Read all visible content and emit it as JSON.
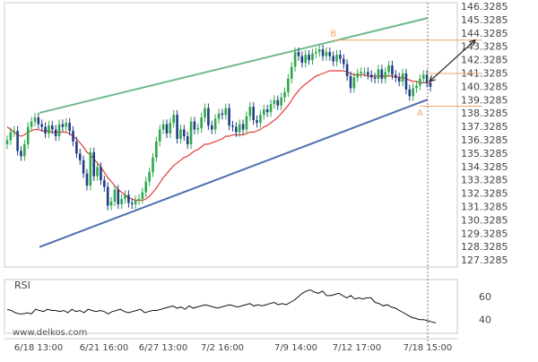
{
  "chart_data": {
    "type": "candlestick",
    "symbol": "",
    "colors": {
      "background": "#ffffff",
      "plot_border": "#c8c8c8",
      "bull": "#2ea84a",
      "bear": "#1f3e85",
      "ma": "#e23b3b",
      "upper_channel": "#6db98c",
      "lower_channel": "#4d6fb0",
      "pattern": "#f4a460",
      "projection": "#222222",
      "rsi": "#111111",
      "vline": "#777777",
      "axis_text": "#444444"
    },
    "y_axis": {
      "ticks": [
        "146.3285",
        "145.3285",
        "144.3285",
        "143.3285",
        "142.3285",
        "141.3285",
        "140.3285",
        "139.3285",
        "138.3285",
        "137.3285",
        "136.3285",
        "135.3285",
        "134.3285",
        "133.3285",
        "132.3285",
        "131.3285",
        "130.3285",
        "129.3285",
        "128.3285",
        "127.3285"
      ],
      "range": [
        126.8,
        146.6
      ]
    },
    "x_axis": {
      "ticks": [
        "6/18 13:00",
        "6/21 16:00",
        "6/27 13:00",
        "7/2 16:00",
        "7/9 14:00",
        "7/12 17:00"
      ],
      "last_label": "7/18 15:00"
    },
    "series": [
      {
        "name": "Price",
        "values": [
          136.3,
          136.9,
          137.0,
          135.5,
          135.1,
          136.0,
          137.3,
          137.7,
          138.0,
          137.5,
          137.3,
          136.8,
          137.4,
          137.1,
          136.6,
          137.5,
          137.3,
          137.6,
          137.0,
          136.2,
          135.3,
          134.8,
          133.8,
          132.9,
          135.4,
          133.6,
          134.3,
          133.3,
          132.8,
          131.4,
          131.7,
          132.6,
          131.5,
          131.9,
          132.2,
          131.6,
          131.5,
          131.8,
          131.9,
          132.4,
          133.2,
          133.9,
          135.0,
          136.2,
          137.1,
          137.5,
          136.8,
          137.6,
          138.2,
          136.4,
          137.1,
          136.6,
          136.0,
          137.7,
          137.1,
          137.2,
          138.0,
          138.7,
          137.4,
          137.1,
          137.9,
          138.3,
          138.2,
          138.7,
          137.4,
          137.3,
          136.9,
          137.5,
          137.1,
          138.1,
          138.8,
          137.8,
          137.6,
          138.2,
          138.6,
          138.4,
          139.0,
          139.3,
          138.9,
          139.5,
          139.9,
          140.9,
          141.8,
          142.9,
          142.6,
          142.1,
          142.7,
          142.3,
          142.8,
          142.9,
          143.1,
          142.6,
          142.9,
          142.6,
          142.2,
          142.7,
          142.4,
          142.0,
          141.1,
          140.2,
          141.0,
          141.3,
          141.4,
          141.4,
          141.2,
          141.0,
          140.9,
          141.6,
          140.9,
          141.4,
          141.9,
          141.2,
          141.0,
          140.7,
          141.3,
          140.1,
          139.6,
          140.2,
          140.4,
          140.9,
          141.2,
          140.6,
          140.3
        ]
      },
      {
        "name": "MA",
        "values": [
          137.3,
          137.1,
          136.9,
          136.7,
          136.6,
          136.7,
          136.9,
          137.0,
          137.1,
          137.1,
          137.0,
          137.0,
          137.0,
          136.9,
          136.9,
          136.9,
          136.9,
          136.9,
          136.8,
          136.6,
          136.4,
          136.1,
          135.8,
          135.4,
          135.2,
          134.9,
          134.6,
          134.3,
          133.9,
          133.5,
          133.2,
          132.9,
          132.6,
          132.4,
          132.2,
          132.0,
          131.9,
          131.8,
          131.8,
          131.8,
          131.9,
          132.1,
          132.4,
          132.7,
          133.1,
          133.5,
          133.8,
          134.1,
          134.4,
          134.6,
          134.8,
          135.0,
          135.1,
          135.3,
          135.5,
          135.6,
          135.8,
          136.0,
          136.0,
          136.1,
          136.2,
          136.3,
          136.4,
          136.6,
          136.6,
          136.7,
          136.7,
          136.7,
          136.7,
          136.8,
          136.9,
          136.9,
          137.0,
          137.1,
          137.3,
          137.4,
          137.6,
          137.8,
          138.0,
          138.3,
          138.6,
          138.9,
          139.3,
          139.7,
          140.0,
          140.3,
          140.5,
          140.7,
          140.9,
          141.1,
          141.2,
          141.3,
          141.4,
          141.5,
          141.5,
          141.5,
          141.5,
          141.5,
          141.4,
          141.3,
          141.2,
          141.2,
          141.2,
          141.2,
          141.1,
          141.1,
          141.1,
          141.1,
          141.1,
          141.1,
          141.1,
          141.1,
          141.0,
          141.0,
          141.0,
          140.9,
          140.8,
          140.7,
          140.7,
          140.6,
          140.6,
          140.6,
          140.5
        ]
      },
      {
        "name": "RSI",
        "values": [
          49,
          48,
          46,
          45,
          45,
          46,
          45,
          49,
          48,
          47,
          49,
          48,
          48,
          47,
          48,
          46,
          49,
          47,
          48,
          46,
          49,
          48,
          47,
          48,
          47,
          45,
          47,
          48,
          49,
          47,
          46,
          47,
          48,
          49,
          46,
          47,
          48,
          48,
          49,
          50,
          51,
          52,
          50,
          51,
          49,
          52,
          50,
          51,
          52,
          53,
          52,
          51,
          50,
          51,
          52,
          53,
          52,
          51,
          52,
          53,
          54,
          52,
          53,
          52,
          53,
          54,
          55,
          53,
          54,
          53,
          55,
          57,
          60,
          63,
          65,
          66,
          64,
          63,
          65,
          61,
          61,
          62,
          63,
          61,
          59,
          61,
          58,
          59,
          58,
          59,
          59,
          55,
          54,
          52,
          53,
          51,
          50,
          48,
          46,
          44,
          42,
          41,
          40,
          40,
          39,
          38,
          37
        ]
      }
    ],
    "channel": {
      "upper": {
        "x0": 0,
        "y0": 138.35,
        "x1": 122,
        "y1": 145.45
      },
      "lower": {
        "x0": 0,
        "y0": 128.3,
        "x1": 122,
        "y1": 139.35
      }
    },
    "pattern_levels": [
      {
        "label": "B",
        "value": 143.8,
        "x": 94
      },
      {
        "label": "A",
        "value": 138.85,
        "x": 119
      }
    ],
    "resistance": 141.3,
    "projection": {
      "from": 140.7,
      "to": 143.8
    },
    "rsi": {
      "label": "RSI",
      "ticks": [
        60,
        40
      ],
      "range": [
        28,
        75
      ]
    },
    "watermark": "www.delkos.com"
  }
}
